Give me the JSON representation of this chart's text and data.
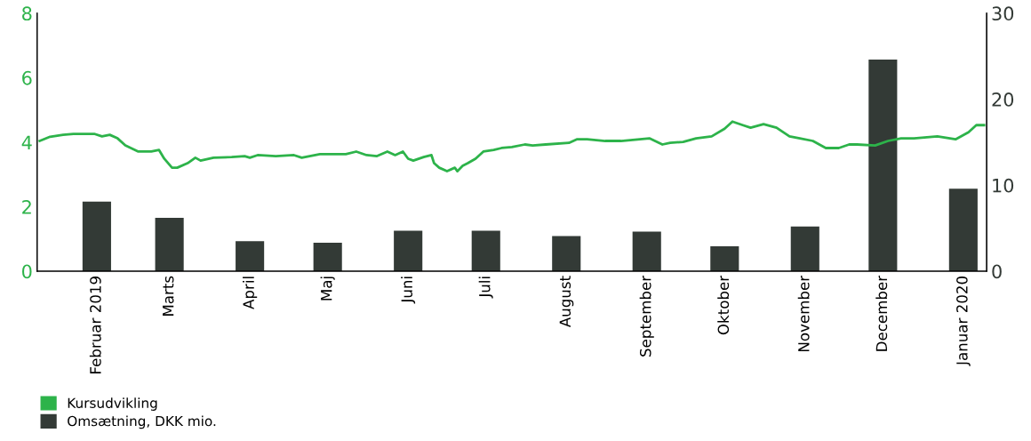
{
  "chart_data": {
    "type": "bar",
    "x": [
      "2019-02-15",
      "2019-03-15",
      "2019-04-15",
      "2019-05-15",
      "2019-06-15",
      "2019-07-15",
      "2019-08-15",
      "2019-09-15",
      "2019-10-15",
      "2019-11-15",
      "2019-12-15",
      "2020-01-15"
    ],
    "xlim": [
      "2019-01-23",
      "2020-01-24"
    ],
    "xticks": [
      {
        "value": "2019-02-15",
        "label": "Februar 2019"
      },
      {
        "value": "2019-03-15",
        "label": "Marts"
      },
      {
        "value": "2019-04-15",
        "label": "April"
      },
      {
        "value": "2019-05-15",
        "label": "Maj"
      },
      {
        "value": "2019-06-15",
        "label": "Juni"
      },
      {
        "value": "2019-07-15",
        "label": "Juli"
      },
      {
        "value": "2019-08-15",
        "label": "August"
      },
      {
        "value": "2019-09-15",
        "label": "September"
      },
      {
        "value": "2019-10-15",
        "label": "Oktober"
      },
      {
        "value": "2019-11-15",
        "label": "November"
      },
      {
        "value": "2019-12-15",
        "label": "December"
      },
      {
        "value": "2020-01-15",
        "label": "Januar 2020"
      }
    ],
    "series": [
      {
        "name": "Kursudvikling",
        "type": "line",
        "color": "#2db34a",
        "x": [
          "2019-01-24",
          "2019-01-28",
          "2019-02-02",
          "2019-02-06",
          "2019-02-14",
          "2019-02-17",
          "2019-02-20",
          "2019-02-23",
          "2019-02-26",
          "2019-03-03",
          "2019-03-08",
          "2019-03-11",
          "2019-03-13",
          "2019-03-16",
          "2019-03-18",
          "2019-03-22",
          "2019-03-25",
          "2019-03-27",
          "2019-04-01",
          "2019-04-08",
          "2019-04-13",
          "2019-04-15",
          "2019-04-18",
          "2019-04-25",
          "2019-05-02",
          "2019-05-05",
          "2019-05-12",
          "2019-05-22",
          "2019-05-26",
          "2019-05-30",
          "2019-06-03",
          "2019-06-07",
          "2019-06-10",
          "2019-06-13",
          "2019-06-15",
          "2019-06-17",
          "2019-06-21",
          "2019-06-24",
          "2019-06-25",
          "2019-06-27",
          "2019-06-30",
          "2019-07-03",
          "2019-07-04",
          "2019-07-06",
          "2019-07-08",
          "2019-07-11",
          "2019-07-14",
          "2019-07-18",
          "2019-07-21",
          "2019-07-25",
          "2019-07-30",
          "2019-08-02",
          "2019-08-07",
          "2019-08-16",
          "2019-08-19",
          "2019-08-23",
          "2019-08-30",
          "2019-09-05",
          "2019-09-16",
          "2019-09-21",
          "2019-09-24",
          "2019-09-29",
          "2019-10-04",
          "2019-10-10",
          "2019-10-15",
          "2019-10-18",
          "2019-10-22",
          "2019-10-25",
          "2019-10-30",
          "2019-11-04",
          "2019-11-09",
          "2019-11-13",
          "2019-11-18",
          "2019-11-23",
          "2019-11-28",
          "2019-12-02",
          "2019-12-05",
          "2019-12-12",
          "2019-12-17",
          "2019-12-22",
          "2019-12-27",
          "2020-01-05",
          "2020-01-12",
          "2020-01-17",
          "2020-01-20",
          "2020-01-23"
        ],
        "values": [
          4.04,
          4.17,
          4.23,
          4.26,
          4.26,
          4.18,
          4.23,
          4.12,
          3.9,
          3.71,
          3.71,
          3.76,
          3.49,
          3.21,
          3.21,
          3.35,
          3.52,
          3.43,
          3.52,
          3.54,
          3.57,
          3.52,
          3.6,
          3.57,
          3.6,
          3.52,
          3.63,
          3.63,
          3.71,
          3.6,
          3.57,
          3.71,
          3.6,
          3.71,
          3.49,
          3.43,
          3.54,
          3.6,
          3.35,
          3.21,
          3.1,
          3.21,
          3.1,
          3.27,
          3.35,
          3.49,
          3.71,
          3.76,
          3.82,
          3.85,
          3.93,
          3.9,
          3.93,
          3.98,
          4.09,
          4.09,
          4.04,
          4.04,
          4.12,
          3.93,
          3.98,
          4.01,
          4.12,
          4.18,
          4.42,
          4.64,
          4.53,
          4.45,
          4.56,
          4.45,
          4.18,
          4.12,
          4.04,
          3.82,
          3.82,
          3.93,
          3.93,
          3.9,
          4.04,
          4.12,
          4.12,
          4.18,
          4.09,
          4.31,
          4.53,
          4.53
        ]
      },
      {
        "name": "Omsætning, DKK mio.",
        "axis": "y2",
        "color": "#333a36",
        "values": [
          8.1,
          6.2,
          3.5,
          3.3,
          4.7,
          4.7,
          4.1,
          4.6,
          2.9,
          5.2,
          24.6,
          9.6
        ]
      }
    ],
    "ylim": [
      0,
      8
    ],
    "yticks": [
      0,
      2,
      4,
      6,
      8
    ],
    "y2lim": [
      0,
      30
    ],
    "y2ticks": [
      0,
      10,
      20,
      30
    ],
    "grid": false,
    "legend": "bottom left",
    "marker": "none",
    "line_style": "solid"
  }
}
